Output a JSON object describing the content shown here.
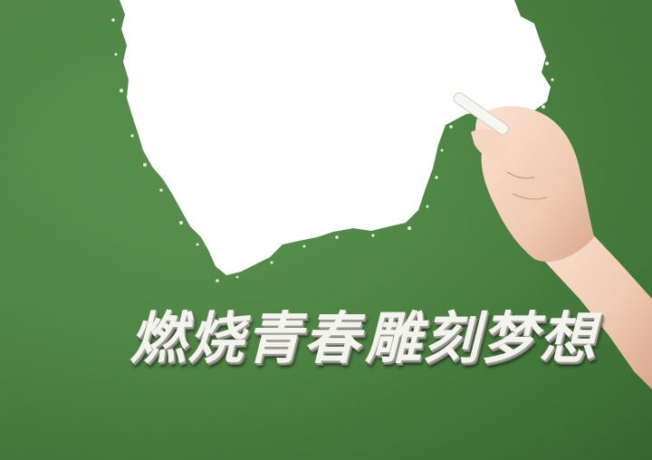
{
  "scene": {
    "slogan_left": "燃烧青春",
    "slogan_right": "雕刻梦想",
    "board_color": "#4f8745",
    "chalk_color": "#ffffff",
    "skin_color": "#f2d2bd"
  }
}
